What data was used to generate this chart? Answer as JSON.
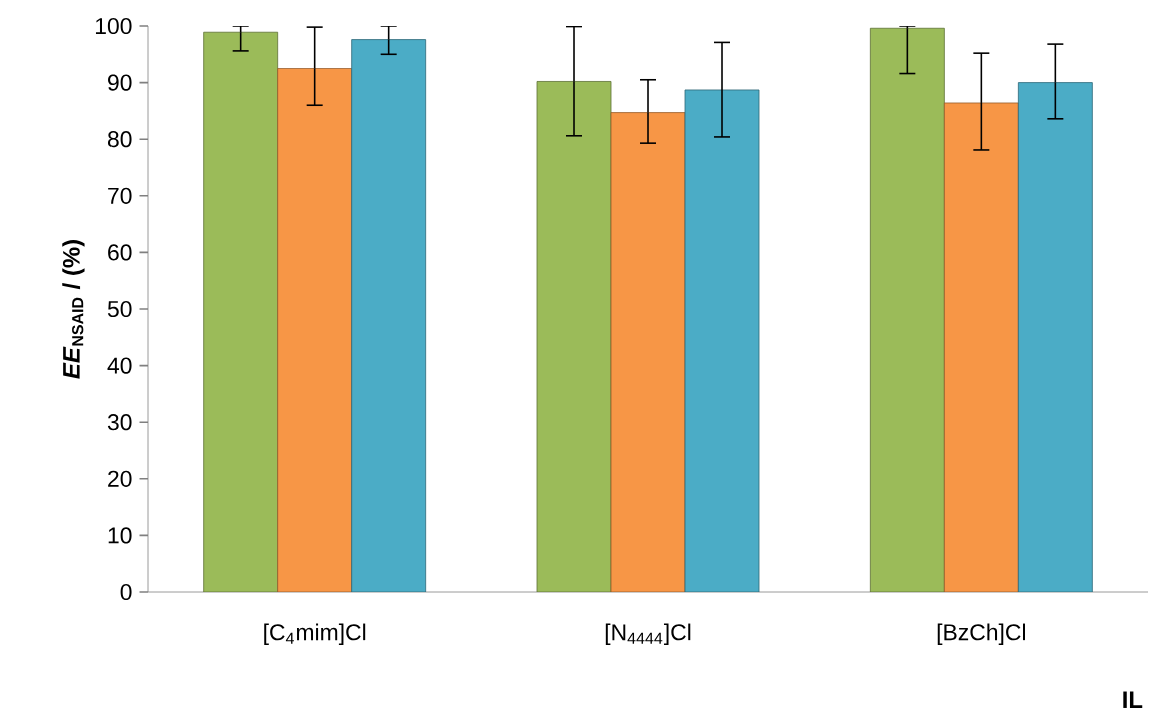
{
  "chart_data": {
    "type": "bar",
    "xlabel": "IL",
    "ylabel": "*EE*$_{NSAID}$ / (%)",
    "categories": [
      "[C$_{4}$mim]Cl",
      "[N$_{4444}$]Cl",
      "[BzCh]Cl"
    ],
    "series": [
      {
        "color": "#9bbb59",
        "values": [
          98.9,
          90.2,
          99.6
        ],
        "errors": [
          [
            95.6,
            100
          ],
          [
            80.6,
            99.9
          ],
          [
            91.6,
            100
          ]
        ]
      },
      {
        "color": "#f79646",
        "values": [
          92.5,
          84.7,
          86.4
        ],
        "errors": [
          [
            86.0,
            99.8
          ],
          [
            79.3,
            90.5
          ],
          [
            78.1,
            95.2
          ]
        ]
      },
      {
        "color": "#4bacc6",
        "values": [
          97.6,
          88.7,
          90.0
        ],
        "errors": [
          [
            95.0,
            100
          ],
          [
            80.4,
            97.1
          ],
          [
            83.6,
            96.8
          ]
        ]
      }
    ],
    "ylim": [
      0,
      100
    ],
    "yticks": [
      0,
      10,
      20,
      30,
      40,
      50,
      60,
      70,
      80,
      90,
      100
    ],
    "grid": false
  }
}
